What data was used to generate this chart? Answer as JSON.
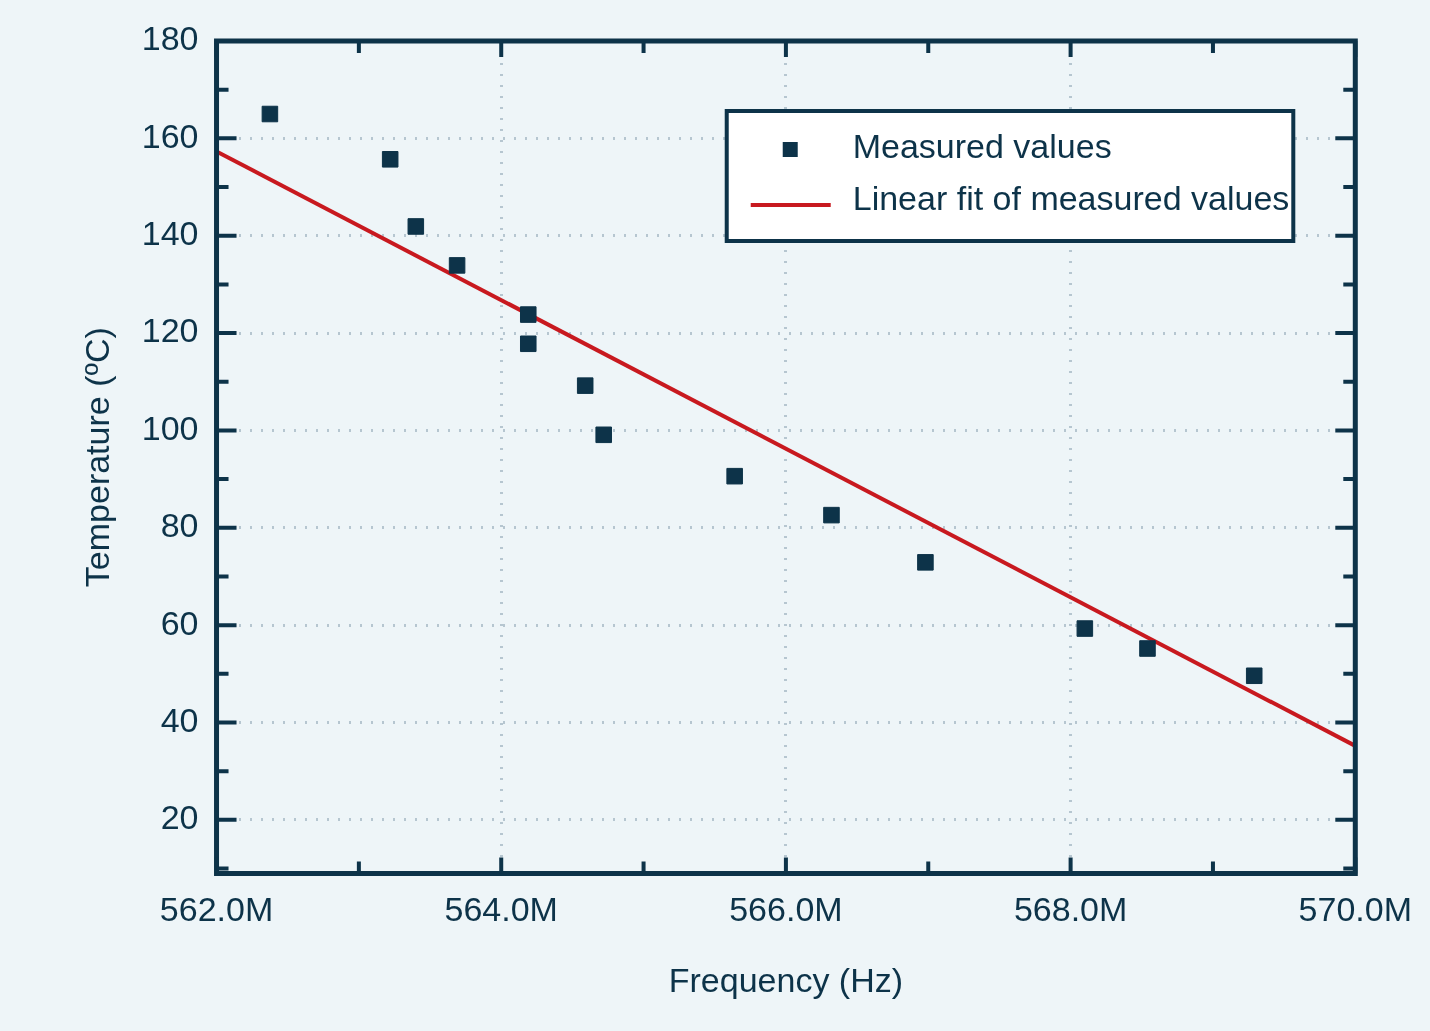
{
  "chart_data": {
    "type": "scatter",
    "xlabel": "Frequency (Hz)",
    "ylabel": "Temperature (ºC)",
    "xlim": [
      562000000,
      570000000
    ],
    "ylim": [
      9,
      180
    ],
    "xticks": [
      {
        "value": 562000000,
        "label": "562.0M"
      },
      {
        "value": 563000000,
        "label": null
      },
      {
        "value": 564000000,
        "label": "564.0M"
      },
      {
        "value": 565000000,
        "label": null
      },
      {
        "value": 566000000,
        "label": "566.0M"
      },
      {
        "value": 567000000,
        "label": null
      },
      {
        "value": 568000000,
        "label": "568.0M"
      },
      {
        "value": 569000000,
        "label": null
      },
      {
        "value": 570000000,
        "label": "570.0M"
      }
    ],
    "yticks": [
      {
        "value": 10,
        "label": null
      },
      20,
      {
        "value": 30,
        "label": null
      },
      40,
      {
        "value": 50,
        "label": null
      },
      60,
      {
        "value": 70,
        "label": null
      },
      80,
      {
        "value": 90,
        "label": null
      },
      100,
      {
        "value": 110,
        "label": null
      },
      120,
      {
        "value": 130,
        "label": null
      },
      140,
      {
        "value": 150,
        "label": null
      },
      160,
      {
        "value": 170,
        "label": null
      },
      180
    ],
    "grid": true,
    "legend": "top right",
    "series": [
      {
        "name": "Measured values",
        "marker": "square",
        "color": "#0d3349",
        "x": [
          562375000,
          563220000,
          563400000,
          563690000,
          564190000,
          564190000,
          564590000,
          564720000,
          565640000,
          566320000,
          566980000,
          568100000,
          568540000,
          569290000
        ],
        "values": [
          165.0,
          155.7,
          141.9,
          133.9,
          123.8,
          117.8,
          109.2,
          99.1,
          90.6,
          82.6,
          72.9,
          59.3,
          55.2,
          49.6
        ]
      },
      {
        "name": "Linear fit of measured values",
        "type": "line",
        "marker": "none",
        "line_style": "solid",
        "color": "#c8191f",
        "x": [
          562000000,
          570000000
        ],
        "values": [
          157.3,
          35.2
        ]
      }
    ]
  }
}
